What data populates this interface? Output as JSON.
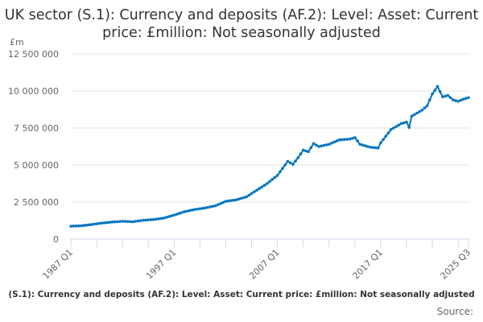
{
  "chart_data": {
    "type": "line",
    "title": "UK sector (S.1): Currency and deposits (AF.2): Level: Asset: Current price: £million: Not seasonally adjusted",
    "ylabel": "£m",
    "ylim": [
      0,
      12500000
    ],
    "yticks": [
      0,
      2500000,
      5000000,
      7500000,
      10000000,
      12500000
    ],
    "ytick_labels": [
      "0",
      "2 500 000",
      "5 000 000",
      "7 500 000",
      "10 000 000",
      "12 500 000"
    ],
    "xlim": [
      1987.0,
      2025.5
    ],
    "xticks": [
      1987.0,
      1997.0,
      2007.0,
      2017.0,
      2025.5
    ],
    "xtick_labels": [
      "1987 Q1",
      "1997 Q1",
      "2007 Q1",
      "2017 Q1",
      "2025 Q3"
    ],
    "grid": true,
    "legend": "(S.1): Currency and deposits (AF.2): Level: Asset: Current price: £million: Not seasonally adjusted",
    "source_label": "Source:",
    "series": [
      {
        "name": "UK sector (S.1) currency and deposits",
        "color": "#0075c2",
        "x": [
          1987,
          1988,
          1989,
          1990,
          1991,
          1992,
          1993,
          1994,
          1995,
          1996,
          1997,
          1998,
          1999,
          2000,
          2001,
          2002,
          2003,
          2004,
          2005,
          2006,
          2007,
          2008,
          2008.5,
          2009,
          2009.5,
          2010,
          2010.5,
          2011,
          2012,
          2013,
          2014,
          2014.5,
          2015,
          2016,
          2016.75,
          2017,
          2018,
          2019,
          2019.5,
          2019.75,
          2020,
          2021,
          2021.5,
          2022,
          2022.5,
          2023,
          2023.5,
          2024,
          2024.5,
          2025,
          2025.5
        ],
        "y": [
          870000,
          900000,
          980000,
          1080000,
          1150000,
          1200000,
          1170000,
          1270000,
          1320000,
          1420000,
          1620000,
          1850000,
          2000000,
          2100000,
          2250000,
          2550000,
          2650000,
          2850000,
          3300000,
          3750000,
          4300000,
          5250000,
          5050000,
          5500000,
          6000000,
          5900000,
          6450000,
          6250000,
          6400000,
          6700000,
          6750000,
          6850000,
          6400000,
          6200000,
          6150000,
          6500000,
          7400000,
          7800000,
          7900000,
          7550000,
          8300000,
          8700000,
          9000000,
          9800000,
          10300000,
          9600000,
          9700000,
          9400000,
          9300000,
          9450000,
          9550000
        ]
      }
    ]
  }
}
